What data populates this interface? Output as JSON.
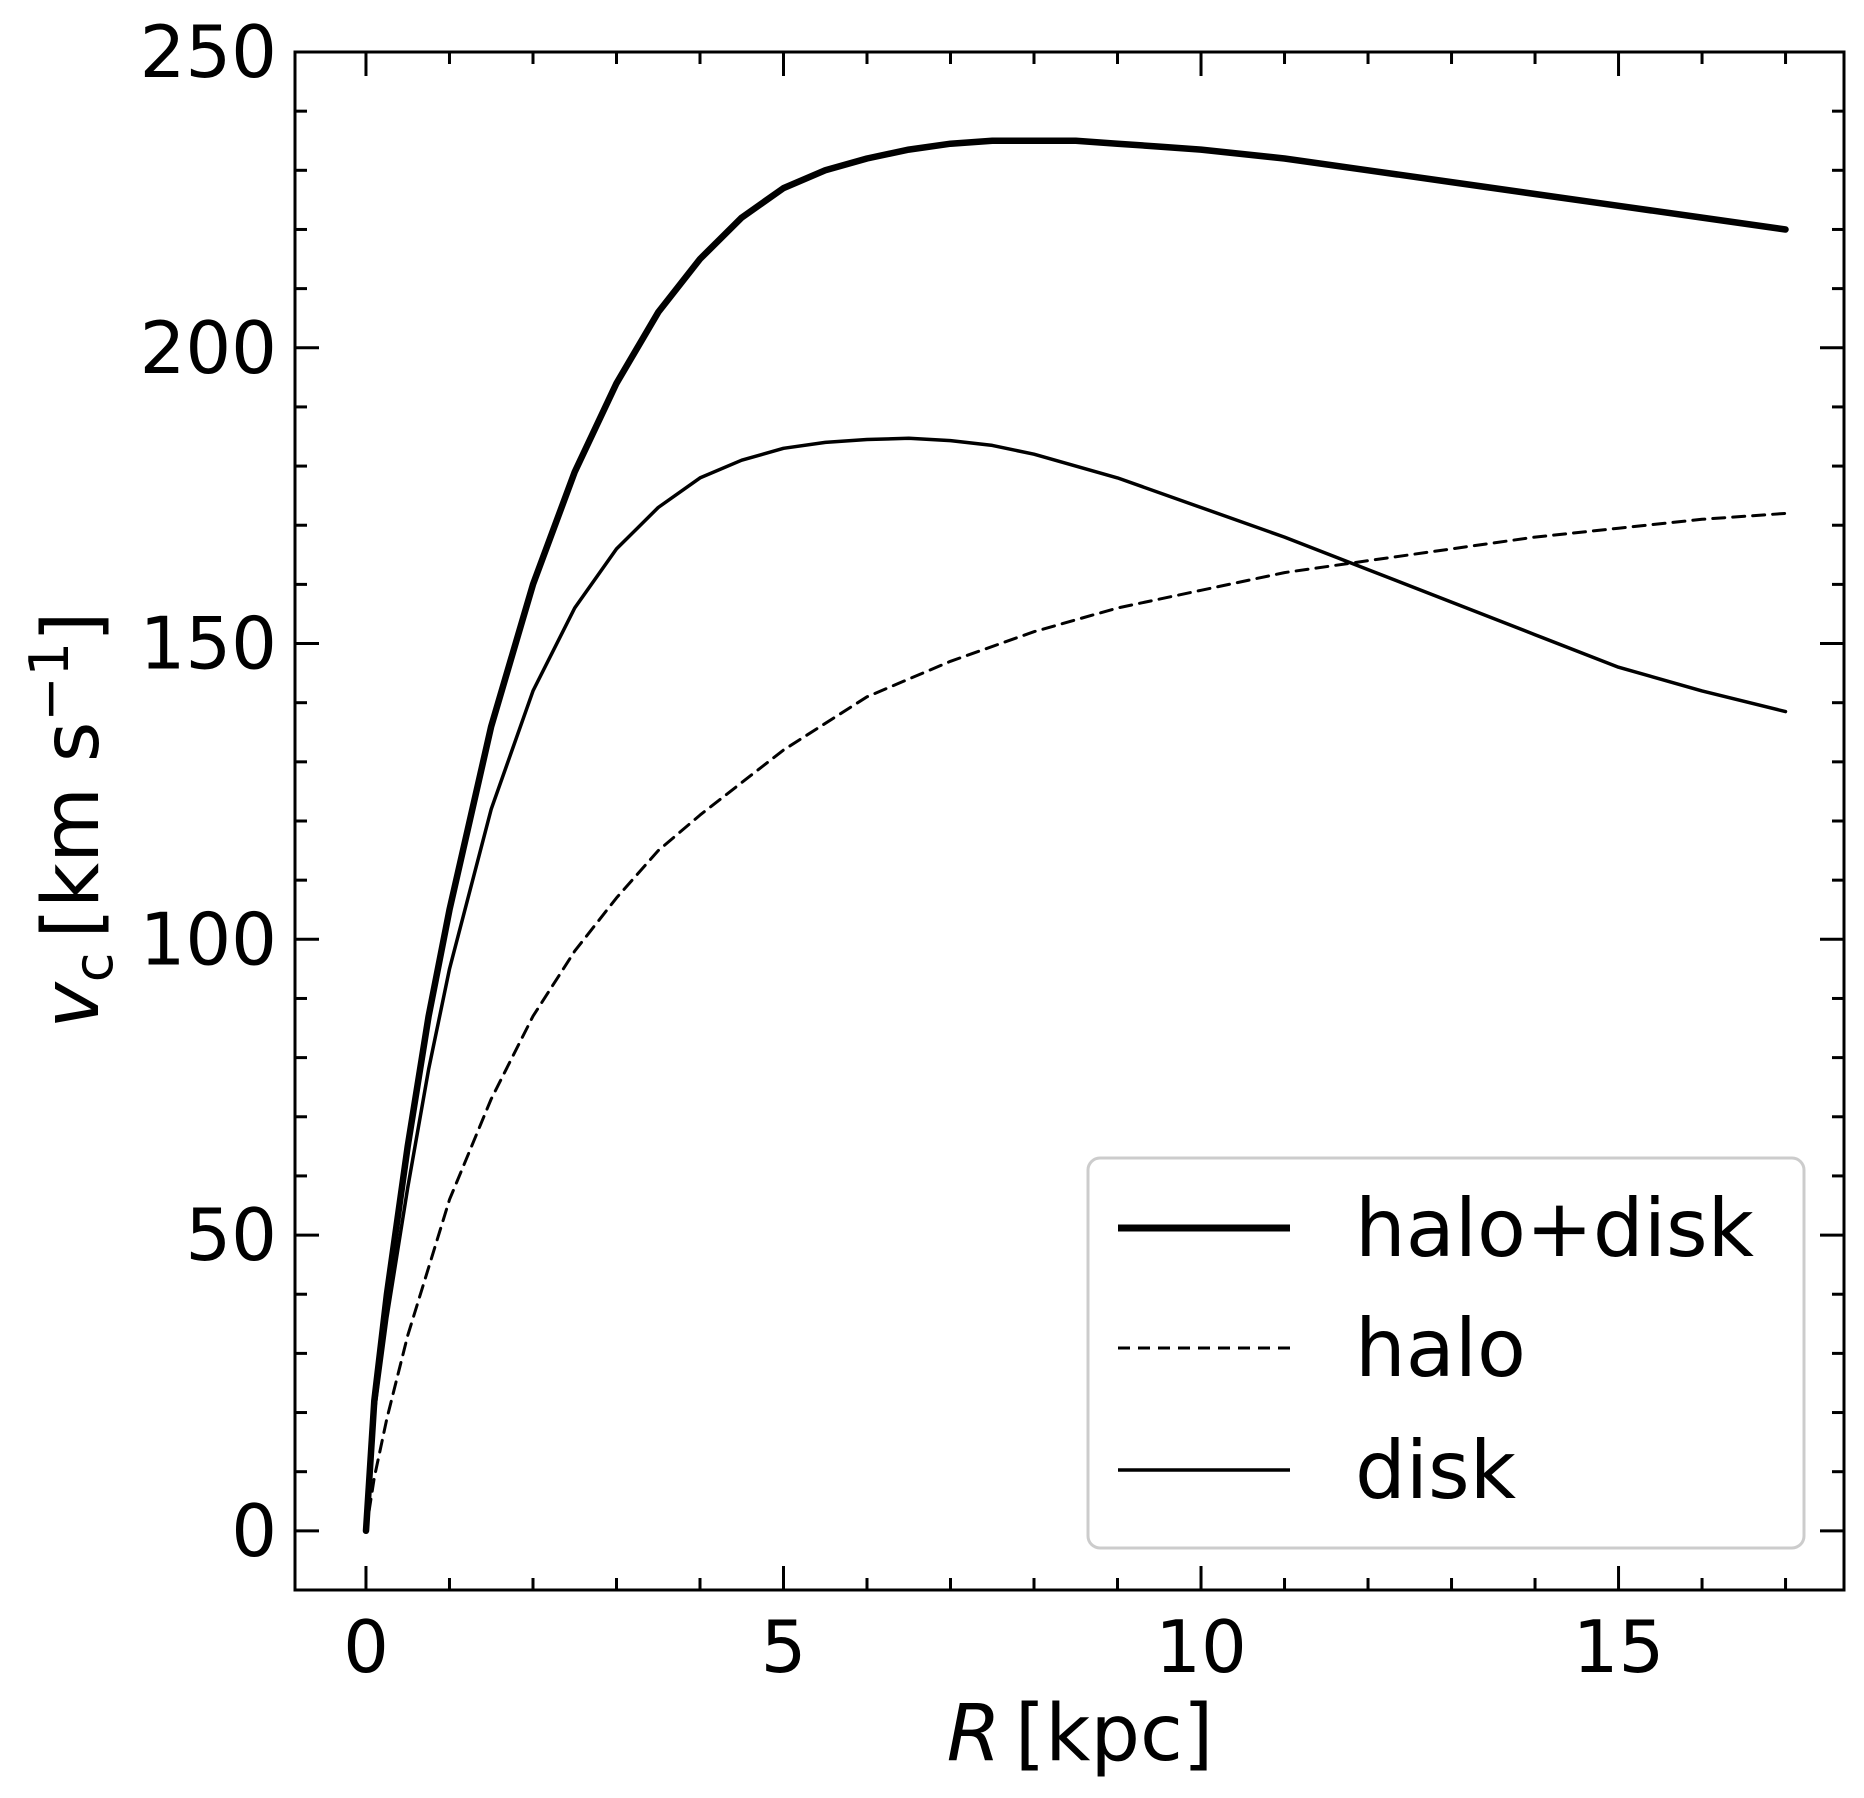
{
  "chart_data": {
    "type": "line",
    "xlabel": {
      "symbol": "R",
      "unit": "[kpc]"
    },
    "ylabel": {
      "symbol": "v",
      "subscript": "c",
      "unit_open": "[km s",
      "unit_exp": "−1",
      "unit_close": "]"
    },
    "xlim": [
      -0.85,
      17.7
    ],
    "ylim": [
      -10,
      250
    ],
    "xticks": [
      0,
      5,
      10,
      15
    ],
    "xtick_labels": [
      "0",
      "5",
      "10",
      "15"
    ],
    "yticks": [
      0,
      50,
      100,
      150,
      200,
      250
    ],
    "ytick_labels": [
      "0",
      "50",
      "100",
      "150",
      "200",
      "250"
    ],
    "grid": false,
    "legend": {
      "placement": "lower-right"
    },
    "series": [
      {
        "name": "halo+disk",
        "style": "solid-thick",
        "x": [
          0,
          0.1,
          0.25,
          0.5,
          0.75,
          1.0,
          1.5,
          2.0,
          2.5,
          3.0,
          3.5,
          4.0,
          4.5,
          5.0,
          5.5,
          6.0,
          6.5,
          7.0,
          7.5,
          8.0,
          8.5,
          9.0,
          9.5,
          10.0,
          11.0,
          12.0,
          13.0,
          14.0,
          15.0,
          16.0,
          17.0
        ],
        "y": [
          0,
          22,
          40,
          65,
          87,
          105,
          136,
          160,
          179,
          194,
          206,
          215,
          222,
          227,
          230,
          232,
          233.5,
          234.5,
          235,
          235,
          235,
          234.5,
          234,
          233.5,
          232,
          230,
          228,
          226,
          224,
          222,
          220
        ]
      },
      {
        "name": "halo",
        "style": "dashed",
        "x": [
          0,
          0.1,
          0.25,
          0.5,
          1.0,
          1.5,
          2.0,
          2.5,
          3.0,
          3.5,
          4.0,
          5.0,
          6.0,
          7.0,
          8.0,
          9.0,
          10.0,
          11.0,
          12.0,
          13.0,
          14.0,
          15.0,
          16.0,
          17.0
        ],
        "y": [
          0,
          9,
          19,
          33,
          56,
          73,
          87,
          98,
          107,
          115,
          121,
          132,
          141,
          147,
          152,
          156,
          159,
          162,
          164,
          166,
          168,
          169.5,
          171,
          172
        ]
      },
      {
        "name": "disk",
        "style": "solid-thin",
        "x": [
          0,
          0.1,
          0.25,
          0.5,
          0.75,
          1.0,
          1.5,
          2.0,
          2.5,
          3.0,
          3.5,
          4.0,
          4.5,
          5.0,
          5.5,
          6.0,
          6.5,
          7.0,
          7.5,
          8.0,
          9.0,
          10.0,
          11.0,
          12.0,
          13.0,
          14.0,
          15.0,
          16.0,
          17.0
        ],
        "y": [
          0,
          20,
          36,
          58,
          78,
          95,
          122,
          142,
          156,
          166,
          173,
          178,
          181,
          183,
          184,
          184.5,
          184.7,
          184.3,
          183.5,
          182,
          178,
          173,
          168,
          162.5,
          157,
          151.5,
          146,
          142,
          138.5
        ]
      }
    ]
  }
}
